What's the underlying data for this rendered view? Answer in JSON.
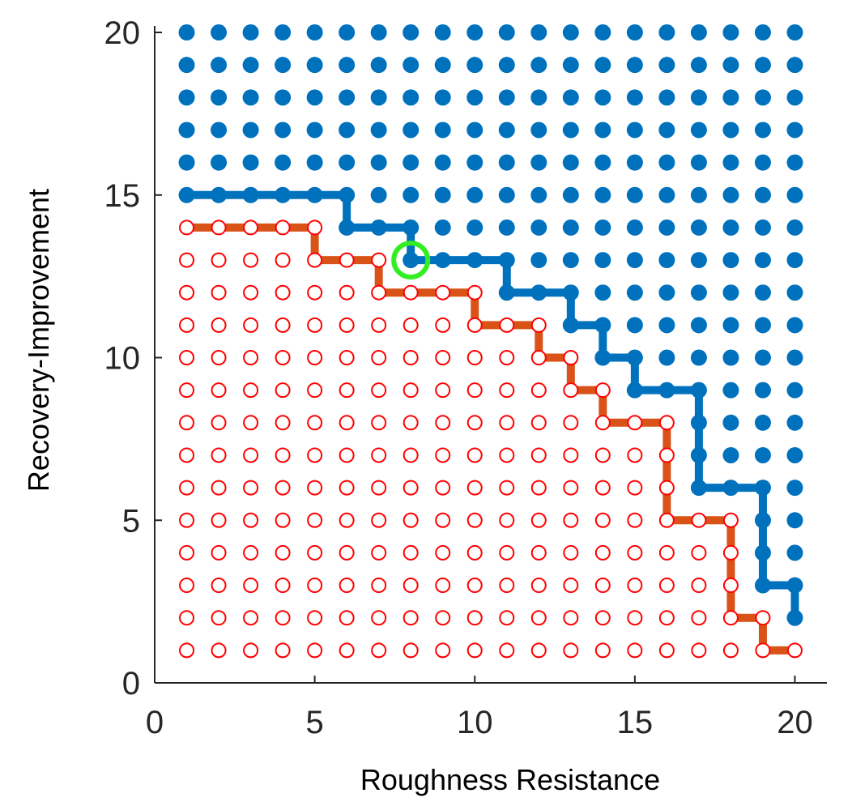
{
  "chart_data": {
    "type": "scatter",
    "title": "",
    "xlabel": "Roughness Resistance",
    "ylabel": "Recovery-Improvement",
    "xlim": [
      0,
      21
    ],
    "ylim": [
      0,
      20.2
    ],
    "xticks": [
      "0",
      "5",
      "10",
      "15",
      "20"
    ],
    "yticks": [
      "0",
      "5",
      "10",
      "15",
      "20"
    ],
    "grid": false,
    "legend": "none",
    "grid_x": [
      1,
      20
    ],
    "grid_y": [
      1,
      20
    ],
    "upper_boundary": [
      [
        1,
        15
      ],
      [
        2,
        15
      ],
      [
        3,
        15
      ],
      [
        4,
        15
      ],
      [
        5,
        15
      ],
      [
        6,
        15
      ],
      [
        6,
        14
      ],
      [
        7,
        14
      ],
      [
        8,
        14
      ],
      [
        8,
        13
      ],
      [
        9,
        13
      ],
      [
        10,
        13
      ],
      [
        11,
        13
      ],
      [
        11,
        12
      ],
      [
        12,
        12
      ],
      [
        13,
        12
      ],
      [
        13,
        11
      ],
      [
        14,
        11
      ],
      [
        14,
        10
      ],
      [
        15,
        10
      ],
      [
        15,
        9
      ],
      [
        16,
        9
      ],
      [
        17,
        9
      ],
      [
        17,
        8
      ],
      [
        17,
        7
      ],
      [
        17,
        6
      ],
      [
        18,
        6
      ],
      [
        19,
        6
      ],
      [
        19,
        5
      ],
      [
        19,
        4
      ],
      [
        19,
        3
      ],
      [
        20,
        3
      ],
      [
        20,
        2
      ]
    ],
    "lower_boundary": [
      [
        1,
        14
      ],
      [
        2,
        14
      ],
      [
        3,
        14
      ],
      [
        4,
        14
      ],
      [
        5,
        14
      ],
      [
        5,
        13
      ],
      [
        6,
        13
      ],
      [
        7,
        13
      ],
      [
        7,
        12
      ],
      [
        8,
        12
      ],
      [
        9,
        12
      ],
      [
        10,
        12
      ],
      [
        10,
        11
      ],
      [
        11,
        11
      ],
      [
        12,
        11
      ],
      [
        12,
        10
      ],
      [
        13,
        10
      ],
      [
        13,
        9
      ],
      [
        14,
        9
      ],
      [
        14,
        8
      ],
      [
        15,
        8
      ],
      [
        16,
        8
      ],
      [
        16,
        7
      ],
      [
        16,
        6
      ],
      [
        16,
        5
      ],
      [
        17,
        5
      ],
      [
        18,
        5
      ],
      [
        18,
        4
      ],
      [
        18,
        3
      ],
      [
        18,
        2
      ],
      [
        19,
        2
      ],
      [
        19,
        1
      ],
      [
        20,
        1
      ]
    ],
    "highlight_point": [
      8,
      13
    ],
    "colors": {
      "feasible": "#0072BD",
      "infeasible": "#D95319",
      "infeasible_marker": "#FF0000",
      "highlight": "#33EE22",
      "axis": "#262626"
    }
  }
}
